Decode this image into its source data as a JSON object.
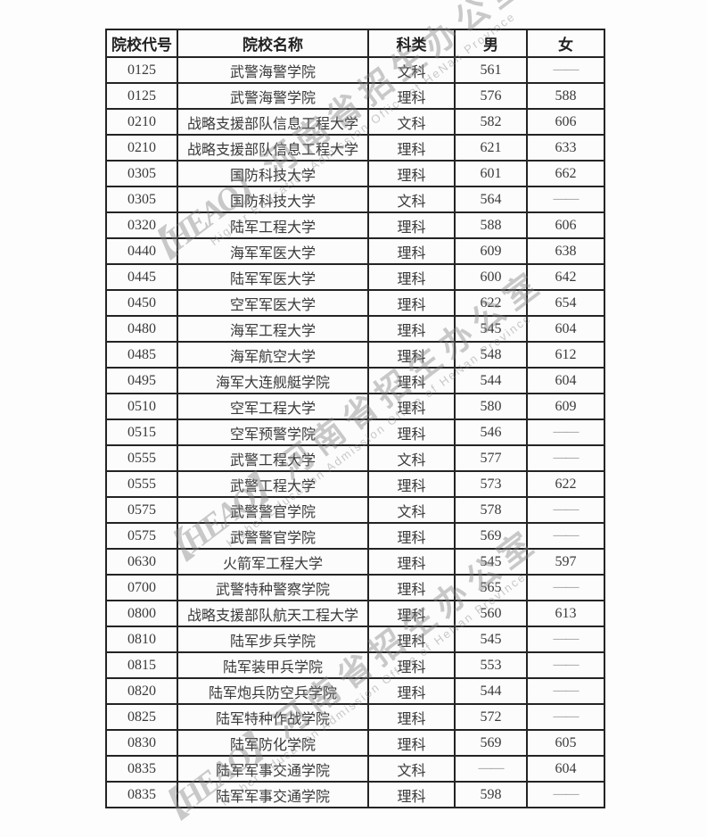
{
  "watermark": {
    "logo": "【HEAO】",
    "cn": "河南省招生办公室",
    "en": "Higher Education Admission Office of HeNan Province",
    "color": "#8a8a8a"
  },
  "table": {
    "headers": [
      "院校代号",
      "院校名称",
      "科类",
      "男",
      "女"
    ],
    "empty_marker": "——",
    "rows": [
      [
        "0125",
        "武警海警学院",
        "文科",
        "561",
        "——"
      ],
      [
        "0125",
        "武警海警学院",
        "理科",
        "576",
        "588"
      ],
      [
        "0210",
        "战略支援部队信息工程大学",
        "文科",
        "582",
        "606"
      ],
      [
        "0210",
        "战略支援部队信息工程大学",
        "理科",
        "621",
        "633"
      ],
      [
        "0305",
        "国防科技大学",
        "理科",
        "601",
        "662"
      ],
      [
        "0305",
        "国防科技大学",
        "文科",
        "564",
        "——"
      ],
      [
        "0320",
        "陆军工程大学",
        "理科",
        "588",
        "606"
      ],
      [
        "0440",
        "海军军医大学",
        "理科",
        "609",
        "638"
      ],
      [
        "0445",
        "陆军军医大学",
        "理科",
        "600",
        "642"
      ],
      [
        "0450",
        "空军军医大学",
        "理科",
        "622",
        "654"
      ],
      [
        "0480",
        "海军工程大学",
        "理科",
        "545",
        "604"
      ],
      [
        "0485",
        "海军航空大学",
        "理科",
        "548",
        "612"
      ],
      [
        "0495",
        "海军大连舰艇学院",
        "理科",
        "544",
        "604"
      ],
      [
        "0510",
        "空军工程大学",
        "理科",
        "580",
        "609"
      ],
      [
        "0515",
        "空军预警学院",
        "理科",
        "546",
        "——"
      ],
      [
        "0555",
        "武警工程大学",
        "文科",
        "577",
        "——"
      ],
      [
        "0555",
        "武警工程大学",
        "理科",
        "573",
        "622"
      ],
      [
        "0575",
        "武警警官学院",
        "文科",
        "578",
        "——"
      ],
      [
        "0575",
        "武警警官学院",
        "理科",
        "569",
        "——"
      ],
      [
        "0630",
        "火箭军工程大学",
        "理科",
        "545",
        "597"
      ],
      [
        "0700",
        "武警特种警察学院",
        "理科",
        "565",
        "——"
      ],
      [
        "0800",
        "战略支援部队航天工程大学",
        "理科",
        "560",
        "613"
      ],
      [
        "0810",
        "陆军步兵学院",
        "理科",
        "545",
        "——"
      ],
      [
        "0815",
        "陆军装甲兵学院",
        "理科",
        "553",
        "——"
      ],
      [
        "0820",
        "陆军炮兵防空兵学院",
        "理科",
        "544",
        "——"
      ],
      [
        "0825",
        "陆军特种作战学院",
        "理科",
        "572",
        "——"
      ],
      [
        "0830",
        "陆军防化学院",
        "理科",
        "569",
        "605"
      ],
      [
        "0835",
        "陆军军事交通学院",
        "文科",
        "——",
        "604"
      ],
      [
        "0835",
        "陆军军事交通学院",
        "理科",
        "598",
        "——"
      ]
    ]
  }
}
